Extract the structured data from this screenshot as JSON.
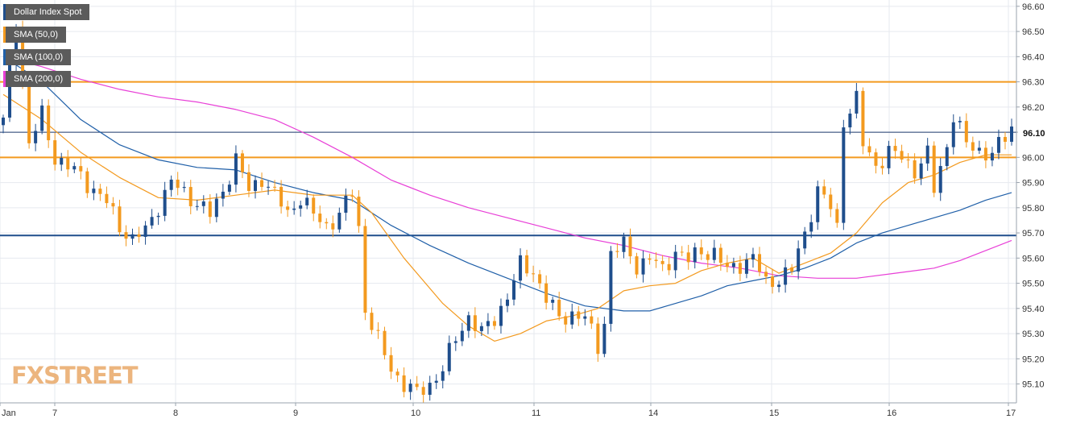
{
  "chart_data": {
    "type": "candlestick",
    "title": "Dollar Index Spot",
    "legend": [
      {
        "name": "Dollar Index Spot",
        "color": "#1f4e8c"
      },
      {
        "name": "SMA (50,0)",
        "color": "#f39a1f"
      },
      {
        "name": "SMA (100,0)",
        "color": "#1f5fa8"
      },
      {
        "name": "SMA (200,0)",
        "color": "#e83fd7"
      }
    ],
    "x_tick_labels": [
      "Jan",
      "7",
      "8",
      "9",
      "10",
      "11",
      "14",
      "15",
      "16",
      "17"
    ],
    "y_tick_labels": [
      "96.60",
      "96.50",
      "96.40",
      "96.30",
      "96.20",
      "96.10",
      "96.00",
      "95.90",
      "95.80",
      "95.70",
      "95.60",
      "95.50",
      "95.40",
      "95.30",
      "95.20",
      "95.10"
    ],
    "ylim": [
      95.025,
      96.625
    ],
    "last_price": "96.10",
    "horizontal_levels": [
      {
        "value": 96.3,
        "color": "#f39a1f"
      },
      {
        "value": 96.1,
        "color": "#1f3a6e"
      },
      {
        "value": 96.0,
        "color": "#f39a1f"
      },
      {
        "value": 95.69,
        "color": "#1f4e8c"
      }
    ],
    "candle_colors": {
      "up": "#1f4e8c",
      "down": "#f39a1f"
    },
    "price_path": [
      [
        0,
        96.14
      ],
      [
        2,
        96.55
      ],
      [
        4,
        96.05
      ],
      [
        6,
        96.17
      ],
      [
        8,
        96.0
      ],
      [
        10,
        95.96
      ],
      [
        12,
        95.93
      ],
      [
        14,
        95.87
      ],
      [
        16,
        95.82
      ],
      [
        18,
        95.73
      ],
      [
        20,
        95.67
      ],
      [
        22,
        95.71
      ],
      [
        24,
        95.81
      ],
      [
        26,
        95.9
      ],
      [
        28,
        95.86
      ],
      [
        30,
        95.82
      ],
      [
        32,
        95.77
      ],
      [
        34,
        95.87
      ],
      [
        36,
        95.99
      ],
      [
        38,
        95.87
      ],
      [
        40,
        95.92
      ],
      [
        42,
        95.85
      ],
      [
        44,
        95.78
      ],
      [
        46,
        95.84
      ],
      [
        48,
        95.77
      ],
      [
        50,
        95.73
      ],
      [
        52,
        95.77
      ],
      [
        54,
        95.86
      ],
      [
        55,
        95.72
      ],
      [
        56,
        95.4
      ],
      [
        58,
        95.27
      ],
      [
        60,
        95.16
      ],
      [
        62,
        95.1
      ],
      [
        64,
        95.06
      ],
      [
        66,
        95.1
      ],
      [
        68,
        95.16
      ],
      [
        70,
        95.28
      ],
      [
        72,
        95.37
      ],
      [
        74,
        95.3
      ],
      [
        76,
        95.36
      ],
      [
        78,
        95.45
      ],
      [
        80,
        95.57
      ],
      [
        82,
        95.55
      ],
      [
        84,
        95.44
      ],
      [
        86,
        95.36
      ],
      [
        88,
        95.38
      ],
      [
        90,
        95.36
      ],
      [
        92,
        95.25
      ],
      [
        93,
        95.35
      ],
      [
        94,
        95.62
      ],
      [
        96,
        95.65
      ],
      [
        98,
        95.57
      ],
      [
        100,
        95.6
      ],
      [
        102,
        95.55
      ],
      [
        104,
        95.63
      ],
      [
        106,
        95.59
      ],
      [
        108,
        95.63
      ],
      [
        110,
        95.62
      ],
      [
        112,
        95.55
      ],
      [
        114,
        95.58
      ],
      [
        116,
        95.6
      ],
      [
        118,
        95.5
      ],
      [
        120,
        95.52
      ],
      [
        122,
        95.55
      ],
      [
        124,
        95.7
      ],
      [
        126,
        95.87
      ],
      [
        128,
        95.8
      ],
      [
        129,
        95.72
      ],
      [
        130,
        96.15
      ],
      [
        132,
        96.23
      ],
      [
        133,
        96.05
      ],
      [
        135,
        95.97
      ],
      [
        137,
        96.02
      ],
      [
        139,
        96.0
      ],
      [
        141,
        95.95
      ],
      [
        143,
        96.01
      ],
      [
        144,
        95.87
      ],
      [
        146,
        96.05
      ],
      [
        147,
        96.17
      ],
      [
        149,
        96.05
      ],
      [
        151,
        96.03
      ],
      [
        153,
        96.01
      ],
      [
        155,
        96.08
      ],
      [
        156,
        96.12
      ]
    ],
    "sma_50": [
      [
        0,
        96.25
      ],
      [
        6,
        96.15
      ],
      [
        12,
        96.02
      ],
      [
        18,
        95.92
      ],
      [
        24,
        95.84
      ],
      [
        30,
        95.83
      ],
      [
        36,
        95.85
      ],
      [
        42,
        95.87
      ],
      [
        48,
        95.85
      ],
      [
        54,
        95.85
      ],
      [
        57,
        95.78
      ],
      [
        62,
        95.6
      ],
      [
        68,
        95.42
      ],
      [
        72,
        95.33
      ],
      [
        76,
        95.27
      ],
      [
        80,
        95.3
      ],
      [
        84,
        95.35
      ],
      [
        88,
        95.37
      ],
      [
        92,
        95.4
      ],
      [
        96,
        95.47
      ],
      [
        100,
        95.49
      ],
      [
        104,
        95.5
      ],
      [
        108,
        95.55
      ],
      [
        112,
        95.58
      ],
      [
        116,
        95.6
      ],
      [
        120,
        95.54
      ],
      [
        124,
        95.58
      ],
      [
        128,
        95.62
      ],
      [
        132,
        95.7
      ],
      [
        136,
        95.82
      ],
      [
        140,
        95.9
      ],
      [
        144,
        95.93
      ],
      [
        148,
        95.98
      ],
      [
        152,
        96.01
      ],
      [
        156,
        96.01
      ]
    ],
    "sma_100": [
      [
        0,
        96.4
      ],
      [
        6,
        96.3
      ],
      [
        12,
        96.15
      ],
      [
        18,
        96.05
      ],
      [
        24,
        95.99
      ],
      [
        30,
        95.96
      ],
      [
        36,
        95.95
      ],
      [
        42,
        95.9
      ],
      [
        48,
        95.86
      ],
      [
        54,
        95.83
      ],
      [
        60,
        95.73
      ],
      [
        66,
        95.65
      ],
      [
        72,
        95.58
      ],
      [
        78,
        95.52
      ],
      [
        84,
        95.46
      ],
      [
        90,
        95.41
      ],
      [
        96,
        95.39
      ],
      [
        100,
        95.39
      ],
      [
        104,
        95.42
      ],
      [
        108,
        95.45
      ],
      [
        112,
        95.49
      ],
      [
        116,
        95.51
      ],
      [
        120,
        95.53
      ],
      [
        124,
        95.56
      ],
      [
        128,
        95.6
      ],
      [
        132,
        95.66
      ],
      [
        136,
        95.7
      ],
      [
        140,
        95.73
      ],
      [
        144,
        95.76
      ],
      [
        148,
        95.79
      ],
      [
        152,
        95.83
      ],
      [
        156,
        95.86
      ]
    ],
    "sma_200": [
      [
        0,
        96.4
      ],
      [
        6,
        96.36
      ],
      [
        12,
        96.31
      ],
      [
        18,
        96.27
      ],
      [
        24,
        96.24
      ],
      [
        30,
        96.22
      ],
      [
        36,
        96.19
      ],
      [
        42,
        96.15
      ],
      [
        48,
        96.08
      ],
      [
        54,
        96.0
      ],
      [
        60,
        95.91
      ],
      [
        66,
        95.85
      ],
      [
        72,
        95.8
      ],
      [
        78,
        95.76
      ],
      [
        84,
        95.72
      ],
      [
        90,
        95.68
      ],
      [
        96,
        95.65
      ],
      [
        102,
        95.61
      ],
      [
        108,
        95.58
      ],
      [
        114,
        95.56
      ],
      [
        120,
        95.53
      ],
      [
        126,
        95.52
      ],
      [
        132,
        95.52
      ],
      [
        138,
        95.54
      ],
      [
        144,
        95.56
      ],
      [
        148,
        95.59
      ],
      [
        152,
        95.63
      ],
      [
        156,
        95.67
      ]
    ]
  },
  "logo": {
    "text": "FXSTREET"
  }
}
